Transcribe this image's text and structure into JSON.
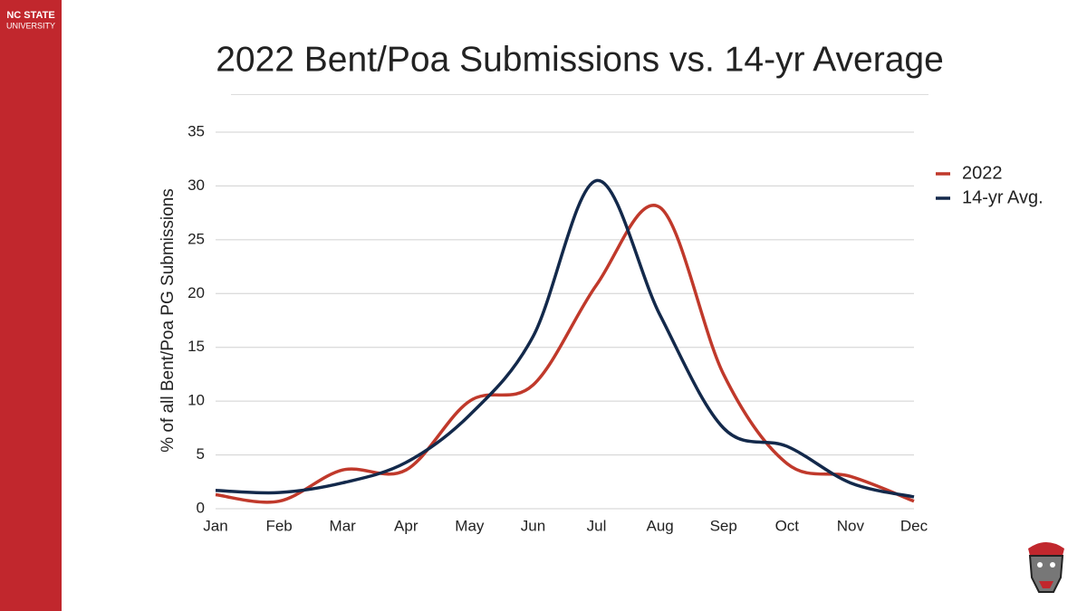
{
  "branding": {
    "line1": "NC STATE",
    "line2": "UNIVERSITY"
  },
  "chart_data": {
    "type": "line",
    "title": "2022 Bent/Poa Submissions vs. 14-yr Average",
    "y_label": "% of all Bent/Poa PG Submissions",
    "categories": [
      "Jan",
      "Feb",
      "Mar",
      "Apr",
      "May",
      "Jun",
      "Jul",
      "Aug",
      "Sep",
      "Oct",
      "Nov",
      "Dec"
    ],
    "series": [
      {
        "name": "2022",
        "color": "#c0392b",
        "values": [
          1.3,
          0.7,
          3.6,
          3.6,
          10,
          11.5,
          20.8,
          28,
          12.5,
          4.2,
          3,
          0.7
        ]
      },
      {
        "name": "14-yr Avg.",
        "color": "#13294b",
        "values": [
          1.7,
          1.5,
          2.4,
          4.3,
          8.7,
          16,
          30.5,
          18,
          7.5,
          5.8,
          2.4,
          1.1
        ]
      }
    ],
    "ylim": [
      0,
      35
    ],
    "yticks": [
      0,
      5,
      10,
      15,
      20,
      25,
      30,
      35
    ],
    "grid": true,
    "smooth": true,
    "legend": "right"
  }
}
